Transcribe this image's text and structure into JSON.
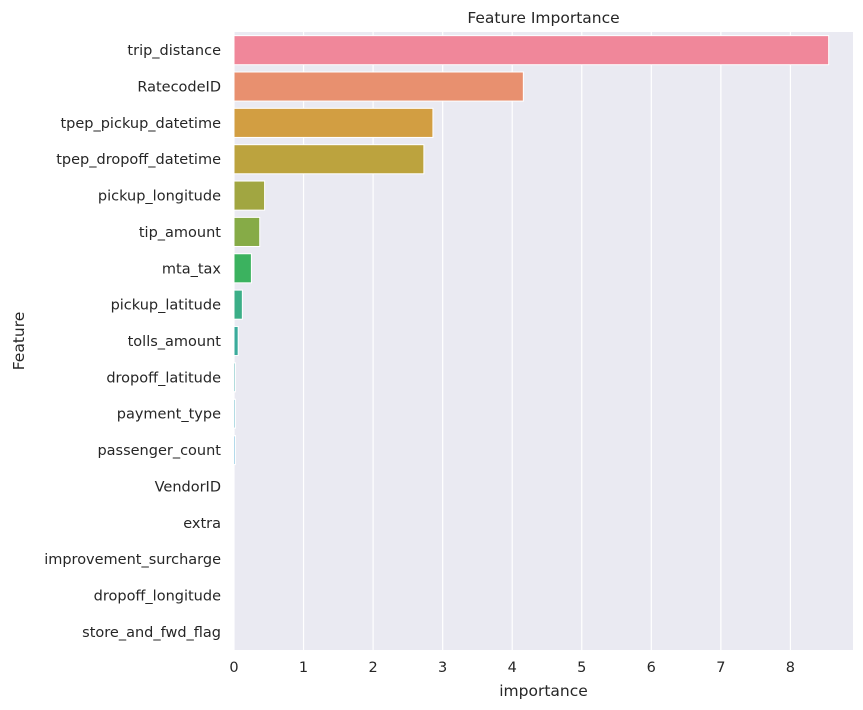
{
  "chart_data": {
    "type": "bar",
    "orientation": "horizontal",
    "title": "Feature Importance",
    "xlabel": "importance",
    "ylabel": "Feature",
    "xlim": [
      0,
      8.9
    ],
    "xticks": [
      "0",
      "1",
      "2",
      "3",
      "4",
      "5",
      "6",
      "7",
      "8"
    ],
    "grid": true,
    "background_color": "#eaeaf2",
    "categories": [
      "trip_distance",
      "RatecodeID",
      "tpep_pickup_datetime",
      "tpep_dropoff_datetime",
      "pickup_longitude",
      "tip_amount",
      "mta_tax",
      "pickup_latitude",
      "tolls_amount",
      "dropoff_latitude",
      "payment_type",
      "passenger_count",
      "VendorID",
      "extra",
      "improvement_surcharge",
      "dropoff_longitude",
      "store_and_fwd_flag"
    ],
    "values": [
      8.55,
      4.16,
      2.86,
      2.73,
      0.44,
      0.37,
      0.25,
      0.12,
      0.06,
      0.02,
      0.02,
      0.02,
      0.0,
      0.0,
      0.0,
      0.0,
      0.0
    ],
    "colors": [
      "#f0879a",
      "#e8906f",
      "#d29e42",
      "#bca33e",
      "#a1a641",
      "#86ab47",
      "#3bb25f",
      "#3bae87",
      "#3aab9b",
      "#3aa8a9",
      "#3fa6ba",
      "#42a1cd",
      "#8c9be6",
      "#ad8ee9",
      "#d286e6",
      "#f06ed5",
      "#f581b5"
    ]
  }
}
